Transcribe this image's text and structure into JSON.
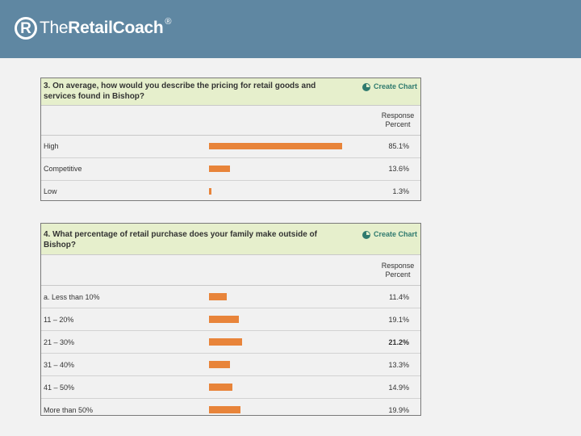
{
  "brand": {
    "name_light": "The",
    "name_bold": "RetailCoach",
    "mark": "R",
    "registered": "®",
    "header_color": "#5f87a2"
  },
  "create_chart_label": "Create Chart",
  "response_header": [
    "Response",
    "Percent"
  ],
  "colors": {
    "bar": "#e8843a",
    "question_bg": "#e6efcc",
    "link": "#2f7a6e"
  },
  "chart_data": [
    {
      "type": "bar",
      "title": "3. On average, how would you describe the pricing for retail goods and services found in Bishop?",
      "categories": [
        "High",
        "Competitive",
        "Low"
      ],
      "values": [
        85.1,
        13.6,
        1.3
      ],
      "value_labels": [
        "85.1%",
        "13.6%",
        "1.3%"
      ],
      "bold": [
        false,
        false,
        false
      ],
      "xlim": [
        0,
        100
      ],
      "ylabel": "Response Percent"
    },
    {
      "type": "bar",
      "title": "4. What percentage of retail purchase does your family make outside of Bishop?",
      "categories": [
        "a. Less than 10%",
        "11 – 20%",
        "21 – 30%",
        "31 – 40%",
        "41 – 50%",
        "More than 50%"
      ],
      "values": [
        11.4,
        19.1,
        21.2,
        13.3,
        14.9,
        19.9
      ],
      "value_labels": [
        "11.4%",
        "19.1%",
        "21.2%",
        "13.3%",
        "14.9%",
        "19.9%"
      ],
      "bold": [
        false,
        false,
        true,
        false,
        false,
        false
      ],
      "xlim": [
        0,
        100
      ],
      "ylabel": "Response Percent"
    }
  ]
}
